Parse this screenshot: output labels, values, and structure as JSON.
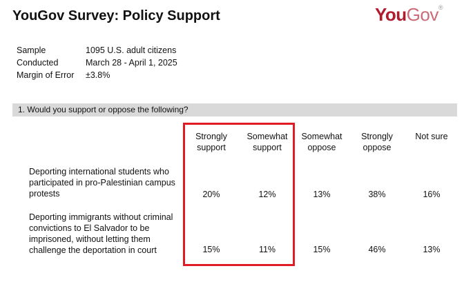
{
  "header": {
    "title": "YouGov Survey: Policy Support",
    "logo_you": "You",
    "logo_gov": "Gov",
    "logo_mark": "®"
  },
  "meta": [
    {
      "label": "Sample",
      "value": "1095 U.S. adult citizens"
    },
    {
      "label": "Conducted",
      "value": "March 28 - April 1, 2025"
    },
    {
      "label": "Margin of Error",
      "value": "±3.8%"
    }
  ],
  "question": "1. Would you support or oppose the following?",
  "columns": [
    {
      "line1": "Strongly",
      "line2": "support"
    },
    {
      "line1": "Somewhat",
      "line2": "support"
    },
    {
      "line1": "Somewhat",
      "line2": "oppose"
    },
    {
      "line1": "Strongly",
      "line2": "oppose"
    },
    {
      "line1": "",
      "line2": "Not sure"
    }
  ],
  "rows": [
    {
      "label": [
        "Deporting international students who",
        "participated in pro-Palestinian campus",
        "protests"
      ],
      "values": [
        "20%",
        "12%",
        "13%",
        "38%",
        "16%"
      ]
    },
    {
      "label": [
        "Deporting immigrants without criminal",
        "convictions to El Salvador to be",
        "imprisoned, without letting them",
        "challenge the deportation in court"
      ],
      "values": [
        "15%",
        "11%",
        "15%",
        "46%",
        "13%"
      ]
    }
  ],
  "highlight_color": "#e01b24",
  "brand_color": "#b01c2e"
}
